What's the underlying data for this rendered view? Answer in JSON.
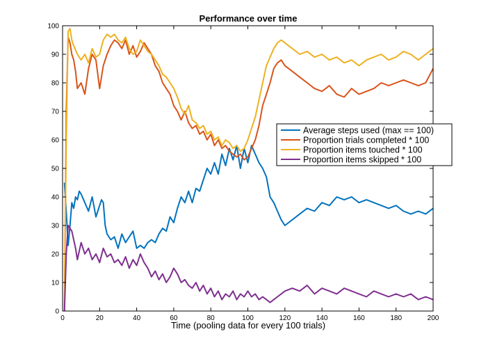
{
  "chart_data": {
    "type": "line",
    "title": "Performance over time",
    "xlabel": "Time (pooling data for every 100 trials)",
    "ylabel": "",
    "xlim": [
      0,
      200
    ],
    "ylim": [
      0,
      100
    ],
    "xticks": [
      0,
      20,
      40,
      60,
      80,
      100,
      120,
      140,
      160,
      180,
      200
    ],
    "yticks": [
      0,
      10,
      20,
      30,
      40,
      50,
      60,
      70,
      80,
      90,
      100
    ],
    "grid": false,
    "legend_position": "right",
    "series": [
      {
        "name": "Average steps used (max == 100)",
        "color": "#0072BD",
        "x": [
          1,
          2,
          3,
          4,
          5,
          6,
          7,
          8,
          9,
          10,
          12,
          14,
          16,
          18,
          20,
          21,
          22,
          23,
          24,
          26,
          28,
          30,
          32,
          34,
          36,
          38,
          40,
          42,
          44,
          46,
          48,
          50,
          52,
          54,
          56,
          58,
          60,
          62,
          64,
          66,
          68,
          70,
          72,
          74,
          76,
          78,
          80,
          82,
          84,
          86,
          88,
          90,
          92,
          94,
          96,
          98,
          100,
          102,
          104,
          106,
          108,
          110,
          112,
          114,
          116,
          118,
          120,
          124,
          128,
          132,
          136,
          140,
          144,
          148,
          152,
          156,
          160,
          164,
          168,
          172,
          176,
          180,
          184,
          188,
          192,
          196,
          200
        ],
        "y": [
          45,
          35,
          23,
          30,
          38,
          36,
          40,
          39,
          42,
          41,
          38,
          35,
          40,
          33,
          37,
          39,
          38,
          30,
          27,
          25,
          26,
          22,
          27,
          24,
          26,
          28,
          22,
          23,
          22,
          24,
          25,
          24,
          27,
          29,
          28,
          33,
          31,
          36,
          40,
          38,
          42,
          38,
          43,
          42,
          46,
          50,
          48,
          52,
          48,
          55,
          51,
          57,
          53,
          58,
          50,
          57,
          52,
          58,
          55,
          52,
          50,
          47,
          40,
          38,
          35,
          32,
          30,
          32,
          34,
          36,
          35,
          38,
          37,
          40,
          39,
          40,
          38,
          39,
          38,
          37,
          36,
          37,
          35,
          34,
          35,
          34,
          36
        ]
      },
      {
        "name": "Proportion trials completed * 100",
        "color": "#D95319",
        "x": [
          1,
          2,
          3,
          4,
          5,
          6,
          7,
          8,
          10,
          12,
          14,
          16,
          18,
          20,
          22,
          24,
          26,
          28,
          30,
          32,
          34,
          36,
          38,
          40,
          42,
          44,
          46,
          48,
          50,
          52,
          54,
          56,
          58,
          60,
          62,
          64,
          66,
          68,
          70,
          72,
          74,
          76,
          78,
          80,
          82,
          84,
          86,
          88,
          90,
          92,
          94,
          96,
          98,
          100,
          102,
          104,
          106,
          108,
          110,
          112,
          114,
          116,
          118,
          120,
          124,
          128,
          132,
          136,
          140,
          144,
          148,
          152,
          156,
          160,
          164,
          168,
          172,
          176,
          180,
          184,
          188,
          192,
          196,
          200
        ],
        "y": [
          0,
          70,
          96,
          94,
          90,
          88,
          84,
          78,
          80,
          76,
          85,
          90,
          88,
          78,
          86,
          90,
          93,
          95,
          94,
          92,
          95,
          90,
          93,
          89,
          91,
          94,
          92,
          90,
          86,
          84,
          80,
          78,
          76,
          72,
          70,
          67,
          70,
          66,
          64,
          65,
          62,
          63,
          60,
          62,
          58,
          60,
          57,
          58,
          56,
          55,
          54,
          55,
          53,
          54,
          57,
          60,
          65,
          72,
          76,
          80,
          85,
          87,
          88,
          86,
          84,
          82,
          80,
          78,
          77,
          79,
          76,
          75,
          78,
          76,
          77,
          78,
          80,
          79,
          80,
          81,
          80,
          79,
          80,
          85
        ]
      },
      {
        "name": "Proportion items touched * 100",
        "color": "#EDB120",
        "x": [
          1,
          2,
          3,
          4,
          5,
          6,
          8,
          10,
          12,
          14,
          16,
          18,
          20,
          22,
          24,
          26,
          28,
          30,
          32,
          34,
          36,
          38,
          40,
          42,
          44,
          46,
          48,
          50,
          52,
          54,
          56,
          58,
          60,
          62,
          64,
          66,
          68,
          70,
          72,
          74,
          76,
          78,
          80,
          82,
          84,
          86,
          88,
          90,
          92,
          94,
          96,
          98,
          100,
          102,
          104,
          106,
          108,
          110,
          112,
          114,
          116,
          118,
          120,
          124,
          128,
          132,
          136,
          140,
          144,
          148,
          152,
          156,
          160,
          164,
          168,
          172,
          176,
          180,
          184,
          188,
          192,
          196,
          200
        ],
        "y": [
          0,
          60,
          98,
          99,
          95,
          93,
          90,
          88,
          90,
          87,
          92,
          89,
          90,
          95,
          97,
          96,
          97,
          95,
          94,
          96,
          92,
          90,
          91,
          95,
          93,
          91,
          90,
          88,
          86,
          83,
          82,
          80,
          78,
          75,
          71,
          69,
          72,
          67,
          66,
          64,
          65,
          62,
          63,
          60,
          61,
          58,
          60,
          59,
          57,
          58,
          56,
          57,
          60,
          64,
          68,
          74,
          80,
          86,
          89,
          92,
          94,
          95,
          94,
          92,
          90,
          91,
          89,
          90,
          88,
          89,
          87,
          88,
          86,
          88,
          89,
          90,
          88,
          89,
          91,
          90,
          88,
          90,
          92
        ]
      },
      {
        "name": "Proportion items skipped * 100",
        "color": "#7E2F8E",
        "x": [
          1,
          2,
          3,
          4,
          5,
          6,
          7,
          8,
          10,
          12,
          14,
          16,
          18,
          20,
          22,
          24,
          26,
          28,
          30,
          32,
          34,
          36,
          38,
          40,
          42,
          44,
          46,
          48,
          50,
          52,
          54,
          56,
          58,
          60,
          62,
          64,
          66,
          68,
          70,
          72,
          74,
          76,
          78,
          80,
          82,
          84,
          86,
          88,
          90,
          92,
          94,
          96,
          98,
          100,
          102,
          104,
          106,
          108,
          110,
          112,
          114,
          116,
          118,
          120,
          124,
          128,
          132,
          136,
          140,
          144,
          148,
          152,
          156,
          160,
          164,
          168,
          172,
          176,
          180,
          184,
          188,
          192,
          196,
          200
        ],
        "y": [
          0,
          20,
          30,
          29,
          28,
          25,
          22,
          18,
          24,
          20,
          22,
          18,
          20,
          17,
          22,
          19,
          20,
          17,
          18,
          16,
          19,
          15,
          18,
          16,
          20,
          17,
          15,
          12,
          14,
          11,
          13,
          10,
          12,
          15,
          13,
          10,
          11,
          9,
          8,
          10,
          7,
          9,
          6,
          8,
          5,
          7,
          4,
          6,
          5,
          7,
          4,
          6,
          5,
          7,
          5,
          6,
          4,
          5,
          4,
          3,
          4,
          5,
          6,
          7,
          8,
          7,
          9,
          6,
          8,
          7,
          6,
          8,
          7,
          6,
          5,
          7,
          6,
          5,
          6,
          5,
          6,
          4,
          5,
          4
        ]
      }
    ]
  }
}
